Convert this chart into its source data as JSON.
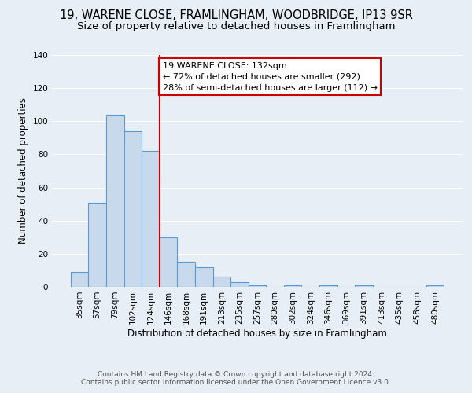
{
  "title": "19, WARENE CLOSE, FRAMLINGHAM, WOODBRIDGE, IP13 9SR",
  "subtitle": "Size of property relative to detached houses in Framlingham",
  "xlabel": "Distribution of detached houses by size in Framlingham",
  "ylabel": "Number of detached properties",
  "bar_labels": [
    "35sqm",
    "57sqm",
    "79sqm",
    "102sqm",
    "124sqm",
    "146sqm",
    "168sqm",
    "191sqm",
    "213sqm",
    "235sqm",
    "257sqm",
    "280sqm",
    "302sqm",
    "324sqm",
    "346sqm",
    "369sqm",
    "391sqm",
    "413sqm",
    "435sqm",
    "458sqm",
    "480sqm"
  ],
  "bar_values": [
    9,
    51,
    104,
    94,
    82,
    30,
    15,
    12,
    6,
    3,
    1,
    0,
    1,
    0,
    1,
    0,
    1,
    0,
    0,
    0,
    1
  ],
  "bar_color": "#c9d9ec",
  "bar_edge_color": "#5b9bd5",
  "vline_color": "#cc0000",
  "annotation_box_text": "19 WARENE CLOSE: 132sqm\n← 72% of detached houses are smaller (292)\n28% of semi-detached houses are larger (112) →",
  "annotation_box_facecolor": "white",
  "annotation_box_edgecolor": "#cc0000",
  "ylim": [
    0,
    140
  ],
  "yticks": [
    0,
    20,
    40,
    60,
    80,
    100,
    120,
    140
  ],
  "footer1": "Contains HM Land Registry data © Crown copyright and database right 2024.",
  "footer2": "Contains public sector information licensed under the Open Government Licence v3.0.",
  "background_color": "#e8eef5",
  "plot_background_color": "#e8eef5",
  "grid_color": "white",
  "title_fontsize": 10.5,
  "subtitle_fontsize": 9.5,
  "axis_label_fontsize": 8.5,
  "tick_fontsize": 7.5,
  "annotation_fontsize": 8,
  "footer_fontsize": 6.5
}
